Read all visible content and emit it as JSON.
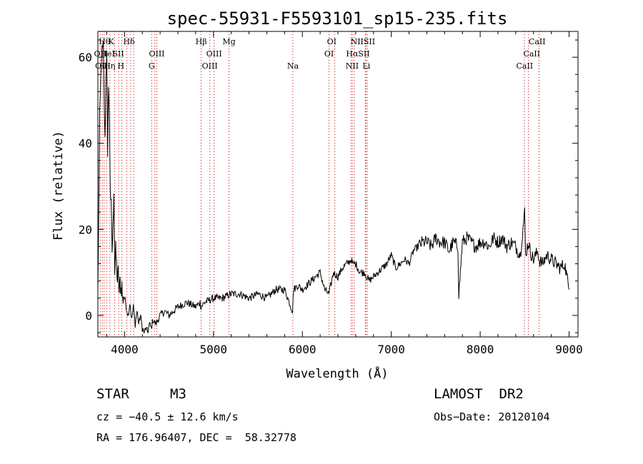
{
  "chart_data": {
    "type": "line",
    "title": "spec-55931-F5593101_sp15-235.fits",
    "xlabel": "Wavelength (Å)",
    "ylabel": "Flux (relative)",
    "xlim": [
      3700,
      9100
    ],
    "ylim": [
      -5,
      66
    ],
    "xticks": [
      4000,
      5000,
      6000,
      7000,
      8000,
      9000
    ],
    "yticks": [
      0,
      20,
      40,
      60
    ],
    "grid": false,
    "series": [
      {
        "values_x": [
          3700,
          3720,
          3740,
          3760,
          3780,
          3790,
          3800,
          3810,
          3820,
          3830,
          3840,
          3850,
          3860,
          3870,
          3880,
          3890,
          3900,
          3910,
          3920,
          3930,
          3940,
          3950,
          3960,
          3970,
          3980,
          3990,
          4000,
          4020,
          4040,
          4060,
          4080,
          4100,
          4120,
          4140,
          4160,
          4180,
          4200,
          4220,
          4240,
          4260,
          4280,
          4300,
          4320,
          4350,
          4400,
          4450,
          4500,
          4600,
          4700,
          4800,
          4850,
          4860,
          4900,
          5000,
          5100,
          5200,
          5300,
          5400,
          5500,
          5600,
          5700,
          5800,
          5890,
          5900,
          5950,
          6000,
          6100,
          6200,
          6250,
          6300,
          6350,
          6400,
          6450,
          6500,
          6550,
          6563,
          6600,
          6650,
          6700,
          6750,
          6800,
          6850,
          6900,
          6950,
          7000,
          7050,
          7100,
          7150,
          7200,
          7250,
          7300,
          7350,
          7400,
          7450,
          7500,
          7550,
          7600,
          7650,
          7700,
          7750,
          7760,
          7800,
          7850,
          7900,
          7950,
          8000,
          8050,
          8100,
          8150,
          8200,
          8250,
          8300,
          8350,
          8400,
          8450,
          8500,
          8510,
          8530,
          8550,
          8560,
          8600,
          8650,
          8660,
          8700,
          8750,
          8800,
          8850,
          8900,
          8950,
          9000
        ],
        "values_y": [
          5,
          45,
          60,
          62,
          40,
          55,
          63,
          35,
          55,
          45,
          30,
          25,
          15,
          20,
          30,
          10,
          15,
          12,
          8,
          10,
          5,
          8,
          6,
          7,
          3,
          5,
          4,
          2,
          0,
          3,
          -1,
          2,
          -2,
          1,
          -2,
          0,
          -3,
          -4,
          -3,
          -4,
          -2,
          -3,
          -1,
          -2,
          0,
          1,
          0,
          2,
          3,
          2,
          3,
          2,
          3,
          4,
          4,
          5,
          5,
          4,
          5,
          4,
          6,
          6,
          1,
          6,
          7,
          6,
          8,
          10,
          6,
          5,
          10,
          9,
          11,
          12,
          13,
          12,
          12,
          10,
          10,
          8,
          9,
          10,
          11,
          12,
          14,
          11,
          12,
          13,
          12,
          15,
          16,
          17,
          17,
          16,
          18,
          17,
          17,
          15,
          17,
          16,
          5,
          17,
          18,
          17,
          16,
          17,
          17,
          16,
          18,
          17,
          18,
          16,
          17,
          16,
          14,
          24,
          14,
          16,
          17,
          15,
          13,
          15,
          13,
          12,
          14,
          13,
          12,
          11,
          12,
          6
        ]
      }
    ],
    "line_annotations": {
      "top_row": [
        "Hθ",
        "K",
        "Hδ",
        "Hβ",
        "Mg",
        "OI",
        "NIISII",
        "CaII"
      ],
      "middle_row": [
        "OII",
        "HeI",
        "SII",
        "OIII",
        "OIII",
        "OI",
        "HαSII",
        "CaII"
      ],
      "bottom_row": [
        "OII",
        "Hη",
        "H",
        "G",
        "OIII",
        "Na",
        "NII",
        "Li",
        "CaII"
      ]
    },
    "line_colors": {
      "spectrum": "#000000",
      "marker": "#cc0000",
      "annotation": "#000000"
    }
  },
  "info": {
    "class": "STAR",
    "subclass": "M3",
    "survey": "LAMOST  DR2",
    "velocity": "cz = −40.5 ± 12.6 km/s",
    "obs_date": "Obs−Date: 20120104",
    "coords": "RA = 176.96407, DEC =  58.32778"
  }
}
